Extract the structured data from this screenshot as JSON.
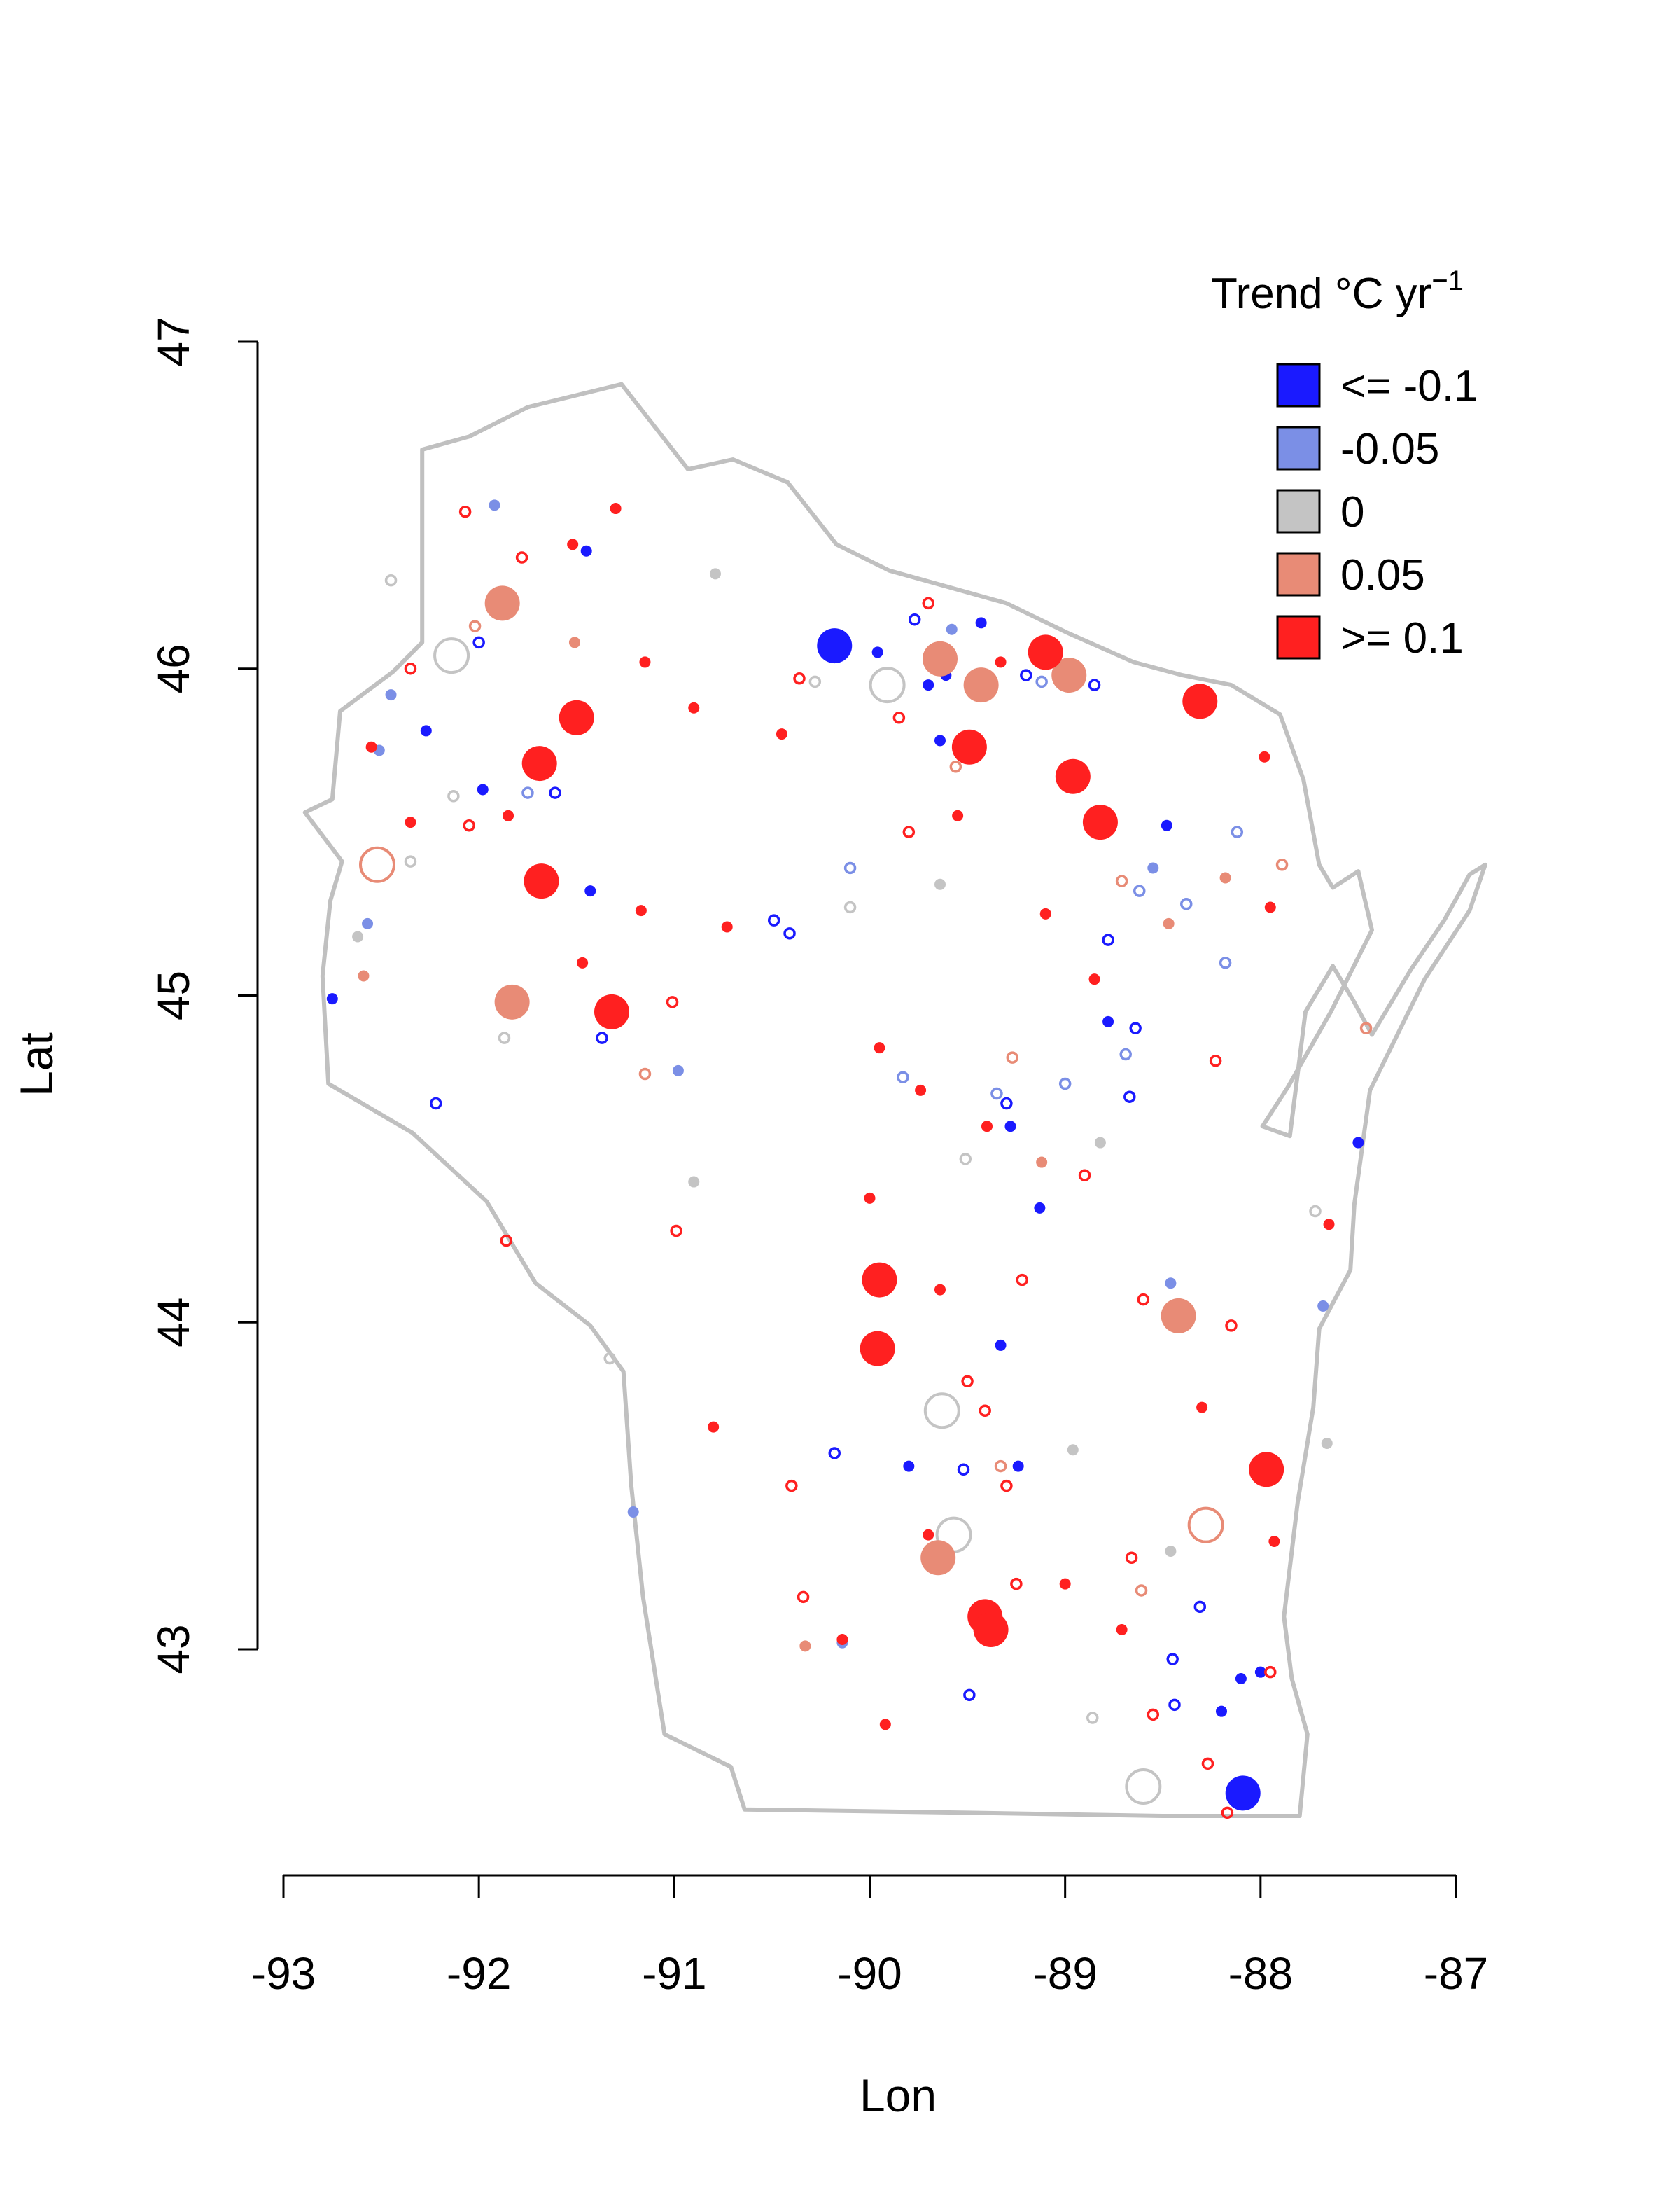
{
  "chart_data": {
    "type": "scatter",
    "xlabel": "Lon",
    "ylabel": "Lat",
    "xlim": [
      -93,
      -87
    ],
    "ylim": [
      43,
      47
    ],
    "x_ticks": [
      "-93",
      "-92",
      "-91",
      "-90",
      "-89",
      "-88",
      "-87"
    ],
    "y_ticks": [
      "43",
      "44",
      "45",
      "46",
      "47"
    ],
    "legend": {
      "title": "Trend °C yr",
      "title_superscript": "−1",
      "placement": "top-right",
      "items": [
        {
          "label": "<= -0.1",
          "color": "#1a1aff"
        },
        {
          "label": "-0.05",
          "color": "#7b8fe6"
        },
        {
          "label": "0",
          "color": "#c4c4c4"
        },
        {
          "label": "0.05",
          "color": "#e88b76"
        },
        {
          "label": ">= 0.1",
          "color": "#ff2020"
        }
      ]
    },
    "state_outline": [
      [
        -92.89,
        45.56
      ],
      [
        -92.75,
        45.6
      ],
      [
        -92.71,
        45.87
      ],
      [
        -92.44,
        45.99
      ],
      [
        -92.29,
        46.08
      ],
      [
        -92.29,
        46.67
      ],
      [
        -92.05,
        46.71
      ],
      [
        -91.75,
        46.8
      ],
      [
        -91.27,
        46.87
      ],
      [
        -90.93,
        46.61
      ],
      [
        -90.7,
        46.64
      ],
      [
        -90.42,
        46.57
      ],
      [
        -90.17,
        46.38
      ],
      [
        -89.9,
        46.3
      ],
      [
        -89.3,
        46.2
      ],
      [
        -88.99,
        46.11
      ],
      [
        -88.65,
        46.02
      ],
      [
        -88.4,
        45.98
      ],
      [
        -88.15,
        45.95
      ],
      [
        -87.9,
        45.86
      ],
      [
        -87.78,
        45.66
      ],
      [
        -87.7,
        45.4
      ],
      [
        -87.63,
        45.33
      ],
      [
        -87.5,
        45.38
      ],
      [
        -87.43,
        45.2
      ],
      [
        -87.64,
        44.95
      ],
      [
        -87.86,
        44.72
      ],
      [
        -87.99,
        44.6
      ],
      [
        -87.85,
        44.57
      ],
      [
        -87.77,
        44.95
      ],
      [
        -87.63,
        45.09
      ],
      [
        -87.53,
        44.99
      ],
      [
        -87.43,
        44.88
      ],
      [
        -87.23,
        45.08
      ],
      [
        -87.06,
        45.23
      ],
      [
        -86.93,
        45.37
      ],
      [
        -86.85,
        45.4
      ],
      [
        -86.93,
        45.26
      ],
      [
        -87.16,
        45.05
      ],
      [
        -87.44,
        44.71
      ],
      [
        -87.52,
        44.36
      ],
      [
        -87.54,
        44.16
      ],
      [
        -87.7,
        43.98
      ],
      [
        -87.73,
        43.74
      ],
      [
        -87.81,
        43.45
      ],
      [
        -87.88,
        43.1
      ],
      [
        -87.84,
        42.91
      ],
      [
        -87.76,
        42.74
      ],
      [
        -87.8,
        42.49
      ],
      [
        -88.5,
        42.49
      ],
      [
        -89.5,
        42.5
      ],
      [
        -90.64,
        42.51
      ],
      [
        -90.71,
        42.64
      ],
      [
        -91.05,
        42.74
      ],
      [
        -91.16,
        43.16
      ],
      [
        -91.22,
        43.5
      ],
      [
        -91.26,
        43.85
      ],
      [
        -91.43,
        43.99
      ],
      [
        -91.71,
        44.12
      ],
      [
        -91.96,
        44.37
      ],
      [
        -92.34,
        44.58
      ],
      [
        -92.77,
        44.73
      ],
      [
        -92.8,
        45.06
      ],
      [
        -92.76,
        45.29
      ],
      [
        -92.7,
        45.41
      ],
      [
        -92.89,
        45.56
      ]
    ],
    "series": [
      {
        "name": "<= -0.1",
        "points": [
          [
            -90.18,
            46.07,
            3
          ],
          [
            -88.09,
            42.56,
            3
          ],
          [
            -89.96,
            46.05,
            1
          ],
          [
            -89.77,
            46.15,
            1
          ],
          [
            -89.43,
            46.14,
            1
          ],
          [
            -89.2,
            45.98,
            1
          ],
          [
            -89.64,
            45.78,
            1
          ],
          [
            -88.85,
            45.95,
            1
          ],
          [
            -88.48,
            45.52,
            1
          ],
          [
            -88.78,
            45.17,
            1
          ],
          [
            -88.78,
            44.92,
            1
          ],
          [
            -88.64,
            44.9,
            1
          ],
          [
            -88.67,
            44.69,
            1
          ],
          [
            -89.3,
            44.67,
            1
          ],
          [
            -89.28,
            44.6,
            1
          ],
          [
            -89.13,
            44.35,
            1
          ],
          [
            -89.33,
            43.93,
            1
          ],
          [
            -89.52,
            43.55,
            1
          ],
          [
            -89.24,
            43.56,
            1
          ],
          [
            -89.8,
            43.56,
            1
          ],
          [
            -90.18,
            43.6,
            1
          ],
          [
            -90.41,
            45.19,
            1
          ],
          [
            -90.49,
            45.23,
            1
          ],
          [
            -91.37,
            44.87,
            1
          ],
          [
            -91.43,
            45.32,
            1
          ],
          [
            -91.61,
            45.62,
            1
          ],
          [
            -92.22,
            44.67,
            1
          ],
          [
            -92.75,
            44.99,
            1
          ],
          [
            -92.0,
            46.08,
            1
          ],
          [
            -91.45,
            46.36,
            1
          ],
          [
            -91.98,
            45.63,
            1
          ],
          [
            -92.27,
            45.81,
            1
          ],
          [
            -89.49,
            42.86,
            1
          ],
          [
            -88.45,
            42.97,
            1
          ],
          [
            -88.31,
            43.13,
            1
          ],
          [
            -88.1,
            42.91,
            1
          ],
          [
            -88.0,
            42.93,
            1
          ],
          [
            -88.2,
            42.81,
            1
          ],
          [
            -87.5,
            44.55,
            1
          ],
          [
            -88.44,
            42.83,
            1
          ],
          [
            -89.61,
            45.98,
            1
          ],
          [
            -89.7,
            45.95,
            1
          ]
        ]
      },
      {
        "name": "-0.05",
        "points": [
          [
            -89.58,
            46.12,
            1
          ],
          [
            -89.12,
            45.96,
            1
          ],
          [
            -88.62,
            45.32,
            1
          ],
          [
            -88.55,
            45.39,
            1
          ],
          [
            -88.38,
            45.28,
            1
          ],
          [
            -88.18,
            45.1,
            1
          ],
          [
            -88.12,
            45.5,
            1
          ],
          [
            -88.69,
            44.82,
            1
          ],
          [
            -89.83,
            44.75,
            1
          ],
          [
            -90.1,
            45.39,
            1
          ],
          [
            -91.75,
            45.62,
            1
          ],
          [
            -92.57,
            45.22,
            1
          ],
          [
            -92.51,
            45.75,
            1
          ],
          [
            -92.45,
            45.92,
            1
          ],
          [
            -91.92,
            46.5,
            1
          ],
          [
            -90.98,
            44.77,
            1
          ],
          [
            -89.0,
            44.73,
            1
          ],
          [
            -89.35,
            44.7,
            1
          ],
          [
            -88.46,
            44.12,
            1
          ],
          [
            -87.68,
            44.05,
            1
          ],
          [
            -91.21,
            43.42,
            1
          ],
          [
            -90.14,
            43.02,
            1
          ]
        ]
      },
      {
        "name": "0",
        "points": [
          [
            -92.14,
            46.04,
            2
          ],
          [
            -89.63,
            43.73,
            2
          ],
          [
            -89.57,
            43.35,
            2
          ],
          [
            -88.6,
            42.58,
            2
          ],
          [
            -89.91,
            45.95,
            2
          ],
          [
            -90.28,
            45.96,
            1
          ],
          [
            -90.79,
            46.29,
            1
          ],
          [
            -89.64,
            45.34,
            1
          ],
          [
            -88.82,
            44.55,
            1
          ],
          [
            -89.51,
            44.5,
            1
          ],
          [
            -88.96,
            43.61,
            1
          ],
          [
            -88.86,
            42.79,
            1
          ],
          [
            -88.46,
            43.3,
            1
          ],
          [
            -87.66,
            43.63,
            1
          ],
          [
            -87.72,
            44.34,
            1
          ],
          [
            -91.33,
            43.89,
            1
          ],
          [
            -90.9,
            44.43,
            1
          ],
          [
            -92.13,
            45.61,
            1
          ],
          [
            -92.35,
            45.41,
            1
          ],
          [
            -92.62,
            45.18,
            1
          ],
          [
            -91.87,
            44.87,
            1
          ],
          [
            -92.45,
            46.27,
            1
          ],
          [
            -90.1,
            45.27,
            1
          ]
        ]
      },
      {
        "name": "0.05",
        "points": [
          [
            -89.64,
            46.03,
            3
          ],
          [
            -89.43,
            45.95,
            3
          ],
          [
            -88.98,
            45.98,
            3
          ],
          [
            -91.83,
            44.98,
            3
          ],
          [
            -88.42,
            44.02,
            3
          ],
          [
            -89.65,
            43.28,
            3
          ],
          [
            -91.88,
            46.2,
            3
          ],
          [
            -92.52,
            45.4,
            2
          ],
          [
            -88.28,
            43.38,
            2
          ],
          [
            -89.56,
            45.7,
            1
          ],
          [
            -88.71,
            45.35,
            1
          ],
          [
            -88.47,
            45.22,
            1
          ],
          [
            -88.18,
            45.36,
            1
          ],
          [
            -87.89,
            45.4,
            1
          ],
          [
            -89.27,
            44.81,
            1
          ],
          [
            -89.12,
            44.49,
            1
          ],
          [
            -87.46,
            44.9,
            1
          ],
          [
            -89.33,
            43.56,
            1
          ],
          [
            -88.61,
            43.18,
            1
          ],
          [
            -90.33,
            43.01,
            1
          ],
          [
            -92.59,
            45.06,
            1
          ],
          [
            -92.02,
            46.13,
            1
          ],
          [
            -91.51,
            46.08,
            1
          ],
          [
            -91.15,
            44.76,
            1
          ]
        ]
      },
      {
        "name": ">= 0.1",
        "points": [
          [
            -89.1,
            46.05,
            3
          ],
          [
            -88.31,
            45.9,
            3
          ],
          [
            -88.96,
            45.67,
            3
          ],
          [
            -88.82,
            45.53,
            3
          ],
          [
            -89.49,
            45.76,
            3
          ],
          [
            -91.69,
            45.71,
            3
          ],
          [
            -91.5,
            45.85,
            3
          ],
          [
            -91.68,
            45.35,
            3
          ],
          [
            -91.32,
            44.95,
            3
          ],
          [
            -89.95,
            44.13,
            3
          ],
          [
            -89.96,
            43.92,
            3
          ],
          [
            -87.97,
            43.55,
            3
          ],
          [
            -89.41,
            43.1,
            3
          ],
          [
            -89.38,
            43.06,
            3
          ],
          [
            -89.85,
            45.85,
            1
          ],
          [
            -89.7,
            46.2,
            1
          ],
          [
            -89.33,
            46.02,
            1
          ],
          [
            -89.55,
            45.55,
            1
          ],
          [
            -89.8,
            45.5,
            1
          ],
          [
            -89.1,
            45.25,
            1
          ],
          [
            -88.85,
            45.05,
            1
          ],
          [
            -88.9,
            44.45,
            1
          ],
          [
            -89.95,
            44.84,
            1
          ],
          [
            -89.74,
            44.71,
            1
          ],
          [
            -89.4,
            44.6,
            1
          ],
          [
            -88.6,
            44.07,
            1
          ],
          [
            -88.15,
            43.99,
            1
          ],
          [
            -88.3,
            43.74,
            1
          ],
          [
            -89.3,
            43.5,
            1
          ],
          [
            -89.5,
            43.82,
            1
          ],
          [
            -88.71,
            43.06,
            1
          ],
          [
            -88.55,
            42.8,
            1
          ],
          [
            -88.27,
            42.65,
            1
          ],
          [
            -88.17,
            42.5,
            1
          ],
          [
            -87.95,
            42.93,
            1
          ],
          [
            -87.93,
            43.33,
            1
          ],
          [
            -88.66,
            43.28,
            1
          ],
          [
            -89.0,
            43.2,
            1
          ],
          [
            -89.92,
            42.77,
            1
          ],
          [
            -90.4,
            43.5,
            1
          ],
          [
            -90.8,
            43.68,
            1
          ],
          [
            -90.99,
            44.28,
            1
          ],
          [
            -91.01,
            44.98,
            1
          ],
          [
            -90.9,
            45.88,
            1
          ],
          [
            -91.15,
            46.02,
            1
          ],
          [
            -91.17,
            45.26,
            1
          ],
          [
            -91.47,
            45.1,
            1
          ],
          [
            -91.85,
            45.55,
            1
          ],
          [
            -92.05,
            45.52,
            1
          ],
          [
            -92.35,
            45.53,
            1
          ],
          [
            -92.55,
            45.76,
            1
          ],
          [
            -92.35,
            46.0,
            1
          ],
          [
            -91.78,
            46.34,
            1
          ],
          [
            -91.52,
            46.38,
            1
          ],
          [
            -91.3,
            46.49,
            1
          ],
          [
            -92.07,
            46.48,
            1
          ],
          [
            -91.86,
            44.25,
            1
          ],
          [
            -88.23,
            44.8,
            1
          ],
          [
            -87.95,
            45.27,
            1
          ],
          [
            -87.98,
            45.73,
            1
          ],
          [
            -87.65,
            44.3,
            1
          ],
          [
            -89.64,
            44.1,
            1
          ],
          [
            -89.22,
            44.13,
            1
          ],
          [
            -89.25,
            43.2,
            1
          ],
          [
            -89.41,
            43.73,
            1
          ],
          [
            -89.7,
            43.35,
            1
          ],
          [
            -90.34,
            43.16,
            1
          ],
          [
            -90.14,
            43.03,
            1
          ],
          [
            -90.0,
            44.38,
            1
          ],
          [
            -90.73,
            45.21,
            1
          ],
          [
            -90.36,
            45.97,
            1
          ],
          [
            -90.45,
            45.8,
            1
          ]
        ]
      }
    ]
  }
}
